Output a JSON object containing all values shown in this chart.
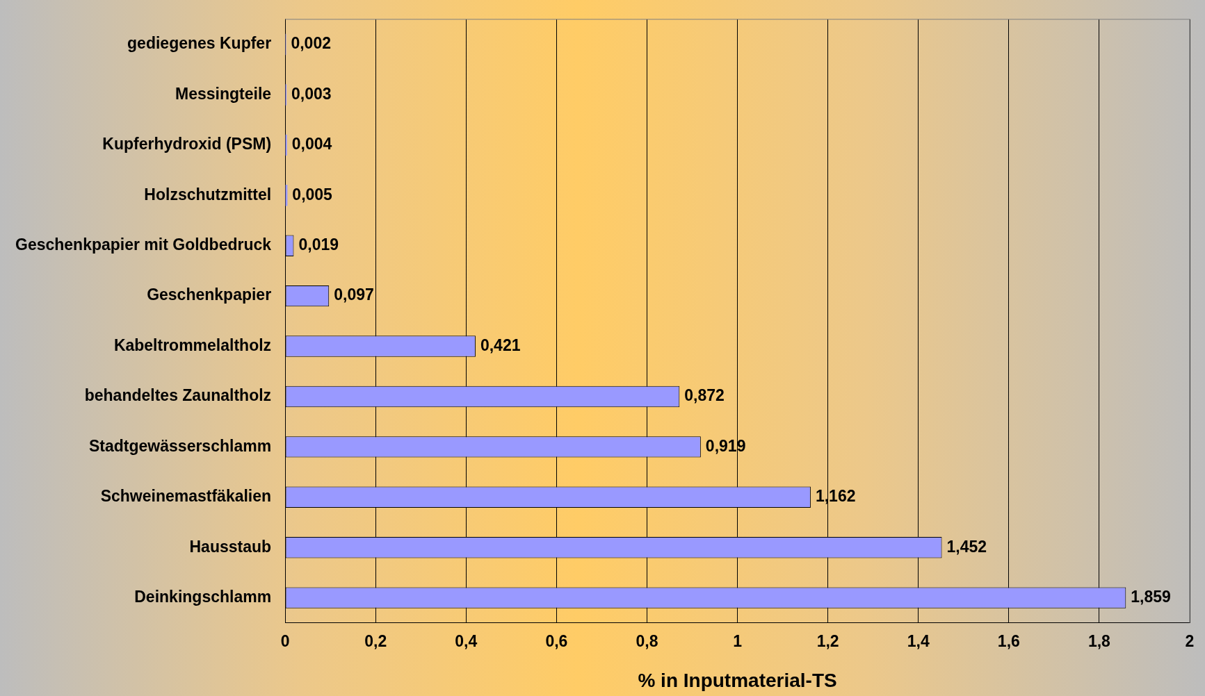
{
  "chart_data": {
    "type": "bar",
    "orientation": "horizontal",
    "xlabel": "% in Inputmaterial-TS",
    "categories": [
      "gediegenes Kupfer",
      "Messingteile",
      "Kupferhydroxid (PSM)",
      "Holzschutzmittel",
      "Geschenkpapier mit Goldbedruck",
      "Geschenkpapier",
      "Kabeltrommelaltholz",
      "behandeltes Zaunaltholz",
      "Stadtgewässerschlamm",
      "Schweinemastfäkalien",
      "Hausstaub",
      "Deinkingschlamm"
    ],
    "values": [
      0.002,
      0.003,
      0.004,
      0.005,
      0.019,
      0.097,
      0.421,
      0.872,
      0.919,
      1.162,
      1.452,
      1.859
    ],
    "value_labels": [
      "0,002",
      "0,003",
      "0,004",
      "0,005",
      "0,019",
      "0,097",
      "0,421",
      "0,872",
      "0,919",
      "1,162",
      "1,452",
      "1,859"
    ],
    "color": "#9999ff",
    "xlim": [
      0,
      2
    ],
    "xticks": [
      0,
      {
        "value": 0.2,
        "label": "0,2"
      },
      {
        "value": 0.4,
        "label": "0,4"
      },
      {
        "value": 0.6,
        "label": "0,6"
      },
      {
        "value": 0.8,
        "label": "0,8"
      },
      1,
      {
        "value": 1.2,
        "label": "1,2"
      },
      {
        "value": 1.4,
        "label": "1,4"
      },
      {
        "value": 1.6,
        "label": "1,6"
      },
      {
        "value": 1.8,
        "label": "1,8"
      },
      2
    ],
    "grid": "x",
    "legend": false
  }
}
